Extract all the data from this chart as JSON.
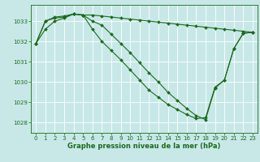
{
  "title": "Graphe pression niveau de la mer (hPa)",
  "bg_color": "#c8e8e8",
  "grid_color": "#ffffff",
  "line_color": "#1a6b1a",
  "marker": "D",
  "markersize": 2.0,
  "linewidth": 0.8,
  "xlim": [
    -0.5,
    23.5
  ],
  "ylim": [
    1027.5,
    1033.8
  ],
  "yticks": [
    1028,
    1029,
    1030,
    1031,
    1032,
    1033
  ],
  "xticks": [
    0,
    1,
    2,
    3,
    4,
    5,
    6,
    7,
    8,
    9,
    10,
    11,
    12,
    13,
    14,
    15,
    16,
    17,
    18,
    19,
    20,
    21,
    22,
    23
  ],
  "xlabel_fontsize": 6.0,
  "tick_fontsize": 5.0,
  "series": [
    {
      "x": [
        0,
        1,
        2,
        3,
        4,
        5,
        6,
        7,
        8,
        9,
        10,
        11,
        12,
        13,
        14,
        15,
        16,
        17,
        18,
        19,
        20,
        21,
        22,
        23
      ],
      "y": [
        1031.9,
        1032.6,
        1033.0,
        1033.15,
        1033.35,
        1033.3,
        1033.3,
        1033.25,
        1033.2,
        1033.15,
        1033.1,
        1033.05,
        1033.0,
        1032.95,
        1032.9,
        1032.85,
        1032.8,
        1032.75,
        1032.7,
        1032.65,
        1032.6,
        1032.55,
        1032.5,
        1032.45
      ]
    },
    {
      "x": [
        0,
        1,
        2,
        3,
        4,
        5,
        6,
        7,
        8,
        9,
        10,
        11,
        12,
        13,
        14,
        15,
        16,
        17,
        18,
        19,
        20,
        21,
        22,
        23
      ],
      "y": [
        1031.9,
        1033.0,
        1033.15,
        1033.2,
        1033.35,
        1033.3,
        1032.6,
        1032.0,
        1031.55,
        1031.1,
        1030.6,
        1030.1,
        1029.6,
        1029.25,
        1028.9,
        1028.65,
        1028.4,
        1028.2,
        1028.25,
        1029.75,
        1030.1,
        1031.65,
        1032.4,
        1032.45
      ]
    },
    {
      "x": [
        0,
        1,
        2,
        3,
        4,
        5,
        6,
        7,
        8,
        9,
        10,
        11,
        12,
        13,
        14,
        15,
        16,
        17,
        18,
        19,
        20,
        21,
        22,
        23
      ],
      "y": [
        1031.9,
        1033.0,
        1033.2,
        1033.25,
        1033.35,
        1033.3,
        1033.0,
        1032.8,
        1032.35,
        1031.9,
        1031.45,
        1030.95,
        1030.45,
        1030.0,
        1029.5,
        1029.1,
        1028.7,
        1028.35,
        1028.15,
        1029.7,
        1030.1,
        1031.65,
        1032.4,
        1032.45
      ]
    }
  ]
}
